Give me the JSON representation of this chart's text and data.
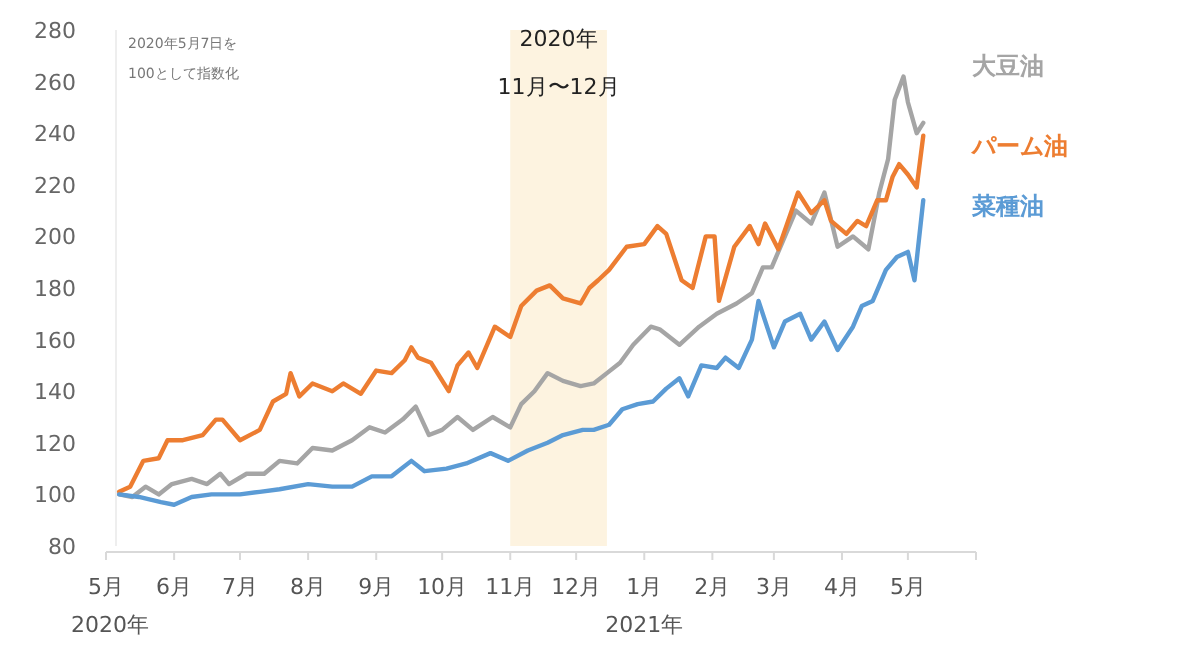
{
  "chart_data": {
    "type": "line",
    "x": [
      "2020-05-07",
      "2020-05-12",
      "2020-05-18",
      "2020-05-25",
      "2020-05-29",
      "2020-06-05",
      "2020-06-14",
      "2020-06-20",
      "2020-06-23",
      "2020-07-01",
      "2020-07-10",
      "2020-07-16",
      "2020-07-22",
      "2020-07-24",
      "2020-07-28",
      "2020-08-03",
      "2020-08-12",
      "2020-08-17",
      "2020-08-25",
      "2020-09-01",
      "2020-09-08",
      "2020-09-14",
      "2020-09-17",
      "2020-09-20",
      "2020-09-26",
      "2020-10-04",
      "2020-10-08",
      "2020-10-13",
      "2020-10-17",
      "2020-10-25",
      "2020-11-01",
      "2020-11-06",
      "2020-11-13",
      "2020-11-19",
      "2020-11-25",
      "2020-12-03",
      "2020-12-07",
      "2020-12-11",
      "2020-12-16",
      "2020-12-24",
      "2021-01-01",
      "2021-01-07",
      "2021-01-11",
      "2021-01-18",
      "2021-01-23",
      "2021-01-29",
      "2021-02-02",
      "2021-02-04",
      "2021-02-11",
      "2021-02-18",
      "2021-02-22",
      "2021-02-25",
      "2021-03-03",
      "2021-03-12",
      "2021-03-18",
      "2021-03-24",
      "2021-03-27",
      "2021-04-03",
      "2021-04-08",
      "2021-04-12",
      "2021-04-17",
      "2021-04-21",
      "2021-04-24",
      "2021-04-27",
      "2021-05-01",
      "2021-05-05",
      "2021-05-08"
    ],
    "series": [
      {
        "name": "大豆油",
        "color": "#a5a5a5",
        "x": [
          "2020-05-07",
          "2020-05-13",
          "2020-05-19",
          "2020-05-25",
          "2020-05-31",
          "2020-06-09",
          "2020-06-16",
          "2020-06-22",
          "2020-06-26",
          "2020-07-04",
          "2020-07-12",
          "2020-07-19",
          "2020-07-27",
          "2020-08-03",
          "2020-08-12",
          "2020-08-21",
          "2020-08-29",
          "2020-09-05",
          "2020-09-13",
          "2020-09-19",
          "2020-09-25",
          "2020-10-01",
          "2020-10-08",
          "2020-10-15",
          "2020-10-24",
          "2020-11-01",
          "2020-11-06",
          "2020-11-12",
          "2020-11-18",
          "2020-11-25",
          "2020-12-03",
          "2020-12-09",
          "2020-12-15",
          "2020-12-21",
          "2020-12-27",
          "2021-01-04",
          "2021-01-08",
          "2021-01-17",
          "2021-01-26",
          "2021-02-03",
          "2021-02-12",
          "2021-02-19",
          "2021-02-24",
          "2021-02-28",
          "2021-03-05",
          "2021-03-11",
          "2021-03-18",
          "2021-03-24",
          "2021-03-30",
          "2021-04-06",
          "2021-04-13",
          "2021-04-18",
          "2021-04-22",
          "2021-04-25",
          "2021-04-29",
          "2021-05-01",
          "2021-05-05",
          "2021-05-08"
        ],
        "values": [
          100,
          99,
          103,
          100,
          104,
          106,
          104,
          108,
          104,
          108,
          108,
          113,
          112,
          118,
          117,
          121,
          126,
          124,
          129,
          134,
          123,
          125,
          130,
          125,
          130,
          126,
          135,
          140,
          147,
          144,
          142,
          143,
          147,
          151,
          158,
          165,
          164,
          158,
          165,
          170,
          174,
          178,
          188,
          188,
          198,
          210,
          205,
          217,
          196,
          200,
          195,
          217,
          230,
          253,
          262,
          252,
          240,
          244
        ]
      },
      {
        "name": "パーム油",
        "color": "#ed7d31",
        "values": [
          101,
          103,
          113,
          114,
          121,
          121,
          123,
          129,
          129,
          121,
          125,
          136,
          139,
          147,
          138,
          143,
          140,
          143,
          139,
          148,
          147,
          152,
          157,
          153,
          151,
          140,
          150,
          155,
          149,
          165,
          161,
          173,
          179,
          181,
          176,
          174,
          180,
          183,
          187,
          196,
          197,
          204,
          201,
          183,
          180,
          200,
          200,
          175,
          196,
          204,
          197,
          205,
          195,
          217,
          209,
          214,
          206,
          201,
          206,
          204,
          214,
          214,
          223,
          228,
          224,
          219,
          239
        ]
      },
      {
        "name": "菜種油",
        "color": "#5b9bd5",
        "x": [
          "2020-05-07",
          "2020-05-16",
          "2020-05-26",
          "2020-06-01",
          "2020-06-09",
          "2020-06-18",
          "2020-07-01",
          "2020-07-10",
          "2020-07-19",
          "2020-08-01",
          "2020-08-12",
          "2020-08-21",
          "2020-08-30",
          "2020-09-08",
          "2020-09-17",
          "2020-09-23",
          "2020-10-03",
          "2020-10-12",
          "2020-10-23",
          "2020-10-31",
          "2020-11-09",
          "2020-11-18",
          "2020-11-25",
          "2020-12-04",
          "2020-12-09",
          "2020-12-16",
          "2020-12-22",
          "2020-12-29",
          "2021-01-05",
          "2021-01-11",
          "2021-01-17",
          "2021-01-21",
          "2021-01-27",
          "2021-02-03",
          "2021-02-07",
          "2021-02-13",
          "2021-02-19",
          "2021-02-22",
          "2021-03-01",
          "2021-03-06",
          "2021-03-13",
          "2021-03-18",
          "2021-03-24",
          "2021-03-30",
          "2021-04-06",
          "2021-04-10",
          "2021-04-15",
          "2021-04-21",
          "2021-04-26",
          "2021-05-01",
          "2021-05-04",
          "2021-05-08"
        ],
        "values": [
          100,
          99,
          97,
          96,
          99,
          100,
          100,
          101,
          102,
          104,
          103,
          103,
          107,
          107,
          113,
          109,
          110,
          112,
          116,
          113,
          117,
          120,
          123,
          125,
          125,
          127,
          133,
          135,
          136,
          141,
          145,
          138,
          150,
          149,
          153,
          149,
          160,
          175,
          157,
          167,
          170,
          160,
          167,
          156,
          165,
          173,
          175,
          187,
          192,
          194,
          183,
          214
        ]
      }
    ],
    "xlim": [
      "2020-05-01",
      "2021-06-01"
    ],
    "xticks": [
      {
        "value": "2020-05-01",
        "label": "5月\n2020年"
      },
      {
        "value": "2020-06-01",
        "label": "6月"
      },
      {
        "value": "2020-07-01",
        "label": "7月"
      },
      {
        "value": "2020-08-01",
        "label": "8月"
      },
      {
        "value": "2020-09-01",
        "label": "9月"
      },
      {
        "value": "2020-10-01",
        "label": "10月"
      },
      {
        "value": "2020-11-01",
        "label": "11月"
      },
      {
        "value": "2020-12-01",
        "label": "12月"
      },
      {
        "value": "2021-01-01",
        "label": "1月\n2021年"
      },
      {
        "value": "2021-02-01",
        "label": "2月"
      },
      {
        "value": "2021-03-01",
        "label": "3月"
      },
      {
        "value": "2021-04-01",
        "label": "4月"
      },
      {
        "value": "2021-05-01",
        "label": "5月"
      },
      {
        "value": "2021-06-01",
        "label": null
      }
    ],
    "ylim": [
      80,
      280
    ],
    "yticks": [
      80,
      100,
      120,
      140,
      160,
      180,
      200,
      220,
      240,
      260,
      280
    ],
    "bands": [
      {
        "axis": "x",
        "from": "2020-11-01",
        "to": "2020-12-15",
        "label": "2020年\n11月〜12月",
        "color": "#fdf3e0"
      }
    ],
    "annotations": [
      "2020年5月7日を\n100として指数化"
    ],
    "legend": "right",
    "grid": false,
    "marker": "none",
    "line_style": "solid"
  }
}
